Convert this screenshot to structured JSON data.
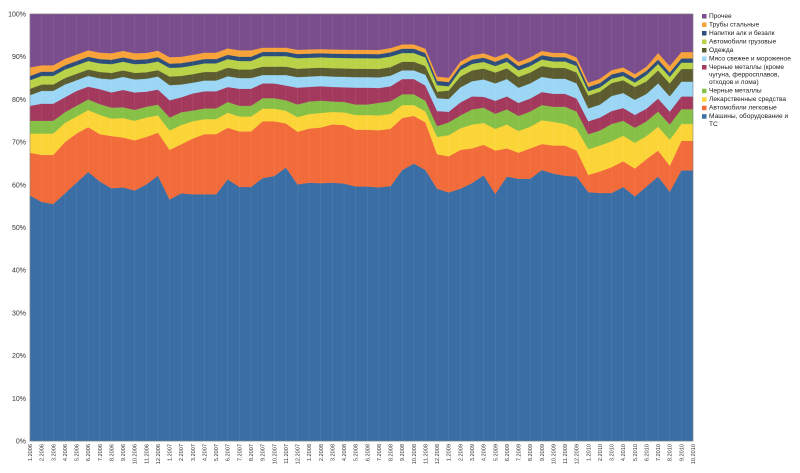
{
  "chart_data": {
    "type": "area",
    "stacked": true,
    "percent": true,
    "ylim": [
      0,
      100
    ],
    "yticks": [
      "0%",
      "10%",
      "20%",
      "30%",
      "40%",
      "50%",
      "60%",
      "70%",
      "80%",
      "90%",
      "100%"
    ],
    "grid": true,
    "legend_position": "right",
    "x": [
      "1.2006",
      "2.2006",
      "3.2006",
      "4.2006",
      "5.2006",
      "6.2006",
      "7.2006",
      "8.2006",
      "9.2006",
      "10.2006",
      "11.2006",
      "12.2006",
      "1.2007",
      "2.2007",
      "3.2007",
      "4.2007",
      "5.2007",
      "6.2007",
      "7.2007",
      "8.2007",
      "9.2007",
      "10.2007",
      "11.2007",
      "12.2007",
      "1.2008",
      "2.2008",
      "3.2008",
      "4.2008",
      "5.2008",
      "6.2008",
      "7.2008",
      "8.2008",
      "9.2008",
      "10.2008",
      "11.2008",
      "12.2008",
      "1.2009",
      "2.2009",
      "3.2009",
      "4.2009",
      "5.2009",
      "6.2009",
      "7.2009",
      "8.2009",
      "9.2009",
      "10.2009",
      "11.2009",
      "12.2009",
      "1.2010",
      "2.2010",
      "3.2010",
      "4.2010",
      "5.2010",
      "6.2010",
      "7.2010",
      "8.2010",
      "9.2010",
      "10.2010"
    ],
    "series": [
      {
        "name": "Машины, оборудование и ТС",
        "color": "#3a6ea5",
        "values": [
          57.5,
          56,
          55.5,
          58,
          60.5,
          63,
          60.5,
          58,
          58.5,
          57.5,
          59.5,
          61.5,
          56,
          58,
          57.5,
          57.5,
          57.5,
          61,
          59.5,
          59.5,
          62.5,
          63,
          65,
          61,
          62,
          62.5,
          62,
          61.5,
          60.5,
          60.5,
          60,
          60,
          62.5,
          64,
          62.5,
          58.5,
          58.5,
          58.5,
          59.5,
          61,
          57,
          61,
          60.5,
          60.5,
          62.5,
          62,
          61.5,
          61,
          58,
          57.5,
          57.5,
          59.5,
          57,
          60.5,
          61,
          57.5,
          64,
          64
        ]
      },
      {
        "name": "Автомобили легковые",
        "color": "#f26b3a",
        "values": [
          10,
          11,
          11.5,
          12,
          11.5,
          10.5,
          11,
          12,
          11.5,
          11.5,
          11,
          10,
          11.5,
          11.5,
          13,
          14,
          14,
          12,
          13,
          13,
          13.5,
          13,
          10.5,
          12.5,
          13,
          13.5,
          14,
          14,
          13.5,
          13.5,
          13.5,
          13.5,
          12,
          11,
          11,
          8,
          8.5,
          9,
          8,
          7,
          10,
          6.5,
          6,
          7,
          6,
          6.5,
          7,
          6,
          4,
          5,
          6,
          6,
          6.5,
          6.5,
          6,
          6,
          7,
          7
        ]
      },
      {
        "name": "Лекарственные средства",
        "color": "#fbd538",
        "values": [
          4.5,
          5,
          5,
          4.5,
          4,
          4,
          4.5,
          4,
          4.5,
          4.5,
          4.5,
          4,
          4.5,
          4.5,
          4,
          3.5,
          3.5,
          3.5,
          3.5,
          3.5,
          3,
          3,
          3,
          3.5,
          3.5,
          3.5,
          3,
          3,
          3.5,
          3.5,
          3.5,
          3.5,
          3,
          2.5,
          2.5,
          4,
          5,
          5,
          5.5,
          5,
          5,
          5.5,
          5,
          5,
          5.5,
          5.5,
          5,
          5,
          6,
          6,
          6,
          6,
          6,
          5.5,
          5.5,
          6,
          4,
          4
        ]
      },
      {
        "name": "Черные металлы",
        "color": "#86c046",
        "values": [
          3,
          3,
          3,
          2.5,
          2.5,
          2.5,
          2.5,
          2.5,
          2.5,
          2.5,
          2.5,
          2.5,
          3,
          3,
          2.5,
          2.5,
          2.5,
          2.5,
          2.5,
          2.5,
          2.5,
          2.5,
          2.5,
          3,
          3,
          3,
          2.5,
          2.5,
          2.5,
          2.5,
          3,
          3,
          2.5,
          2.5,
          2.5,
          2.5,
          3,
          3,
          3.5,
          3.5,
          3.5,
          3.5,
          3.5,
          3.5,
          3.5,
          3.5,
          4,
          4,
          3.5,
          3.5,
          4,
          3.5,
          3.5,
          3.5,
          3.5,
          3.5,
          3.5,
          3.5
        ]
      },
      {
        "name": "Черные металлы (кроме чугуна, ферросплавов, отходов и лома)",
        "color": "#a33a5e",
        "values": [
          3.5,
          4,
          4,
          3.5,
          3.5,
          3,
          3.5,
          3.5,
          4,
          4,
          3.5,
          3.5,
          4,
          3.5,
          4,
          4,
          4,
          3.5,
          4,
          4,
          3.5,
          3.5,
          3.5,
          4,
          3.5,
          3.5,
          3.5,
          3.5,
          4,
          4,
          3.5,
          3.5,
          3.5,
          3.5,
          3.5,
          3.5,
          2.5,
          3,
          3,
          2.5,
          3,
          3,
          3,
          3,
          3,
          3,
          3,
          3,
          3,
          3,
          3,
          3,
          3,
          3,
          3,
          3,
          3,
          3
        ]
      },
      {
        "name": "Мясо свежее и мороженое",
        "color": "#9bd6f5",
        "values": [
          2.5,
          3,
          3,
          3,
          2.5,
          2.5,
          2.5,
          3,
          3,
          3,
          3,
          3,
          3.5,
          3,
          2.5,
          2.5,
          2.5,
          2.5,
          2.5,
          2.5,
          2,
          2,
          2.5,
          2.5,
          2.5,
          2.5,
          2.5,
          2.5,
          2.5,
          2.5,
          2.5,
          2.5,
          2,
          2,
          2.5,
          3,
          3,
          3.5,
          3.5,
          4,
          4,
          4,
          3.5,
          3.5,
          3.5,
          3.5,
          3.5,
          3.5,
          3,
          3,
          3.5,
          3.5,
          3.5,
          3.5,
          3.5,
          3.5,
          3.5,
          3.5
        ]
      },
      {
        "name": "Одежда",
        "color": "#5c5c30",
        "values": [
          1.5,
          1.5,
          1.5,
          1.5,
          1.5,
          1.5,
          1.5,
          1.5,
          1.5,
          1.5,
          1.5,
          1.5,
          2,
          2,
          2,
          2,
          2,
          2,
          2,
          2,
          2,
          2,
          2,
          2,
          2,
          2,
          2,
          2,
          2,
          2,
          2,
          2,
          2,
          2,
          2,
          1.5,
          2,
          2.5,
          2.5,
          2.5,
          2.5,
          2.5,
          2.5,
          2.5,
          2.5,
          2.5,
          2.5,
          2.5,
          3,
          3,
          3,
          3,
          3,
          3,
          3,
          3,
          3,
          3
        ]
      },
      {
        "name": "Автомобили грузовые",
        "color": "#b9d247",
        "values": [
          2,
          2,
          2,
          2,
          2,
          2,
          2,
          2,
          2,
          2,
          2,
          2,
          2,
          2,
          2,
          2,
          2,
          2,
          2,
          2,
          2.5,
          2.5,
          2.5,
          2.5,
          2.5,
          2.5,
          2.5,
          2.5,
          2.5,
          2.5,
          2.5,
          2.5,
          2,
          2,
          2,
          1.5,
          1,
          1.5,
          1.5,
          1.5,
          1.5,
          1.5,
          1.5,
          1.5,
          1.5,
          1.5,
          1.5,
          1.5,
          1,
          1,
          1,
          1,
          1,
          1.5,
          1.5,
          1.5,
          1.5,
          1.5
        ]
      },
      {
        "name": "Напитки алк и безалк",
        "color": "#2d4e7a",
        "values": [
          1,
          1,
          1,
          1,
          1,
          1,
          1,
          1,
          1,
          1,
          1,
          1,
          1,
          1,
          1,
          1,
          1,
          1,
          1,
          1,
          1,
          1,
          1,
          1,
          1,
          1,
          1,
          1,
          1,
          1,
          1,
          1,
          1,
          1,
          1,
          1,
          1,
          1,
          1,
          1,
          1,
          1,
          1,
          1,
          1,
          1,
          1,
          1,
          1,
          1,
          1,
          1,
          1,
          1,
          1,
          1,
          1,
          1
        ]
      },
      {
        "name": "Трубы стальные",
        "color": "#f7a33a",
        "values": [
          2,
          1.5,
          1.5,
          1.5,
          1.5,
          1.5,
          1.5,
          1.5,
          1.5,
          1.5,
          1.5,
          1.5,
          1.5,
          1.5,
          1.5,
          1.5,
          1.5,
          1.5,
          1.5,
          1.5,
          1,
          1,
          1,
          1,
          1,
          1,
          1,
          1,
          1,
          1,
          1,
          1,
          1,
          1,
          1,
          1,
          1,
          1,
          1,
          1,
          1,
          1,
          1,
          1,
          1,
          1,
          1,
          1,
          1,
          1,
          1,
          1,
          1,
          1,
          1.5,
          1.5,
          1.5,
          1.5
        ]
      },
      {
        "name": "Прочее",
        "color": "#7a4d8c",
        "values": [
          12.5,
          12,
          12,
          10.5,
          9.5,
          8.5,
          9,
          9,
          8.5,
          9,
          9,
          8.5,
          10,
          10,
          9.5,
          9,
          9,
          8,
          8.5,
          8.5,
          8,
          8,
          8,
          8.5,
          8.5,
          8.5,
          8.5,
          8.5,
          8.5,
          8.5,
          8.5,
          8,
          7,
          7,
          8,
          14.5,
          15,
          11,
          9.5,
          9,
          10,
          9,
          11,
          10,
          8.5,
          9,
          9,
          10,
          16,
          15,
          13,
          12.5,
          14,
          12.5,
          9,
          12,
          9,
          9
        ]
      }
    ]
  }
}
